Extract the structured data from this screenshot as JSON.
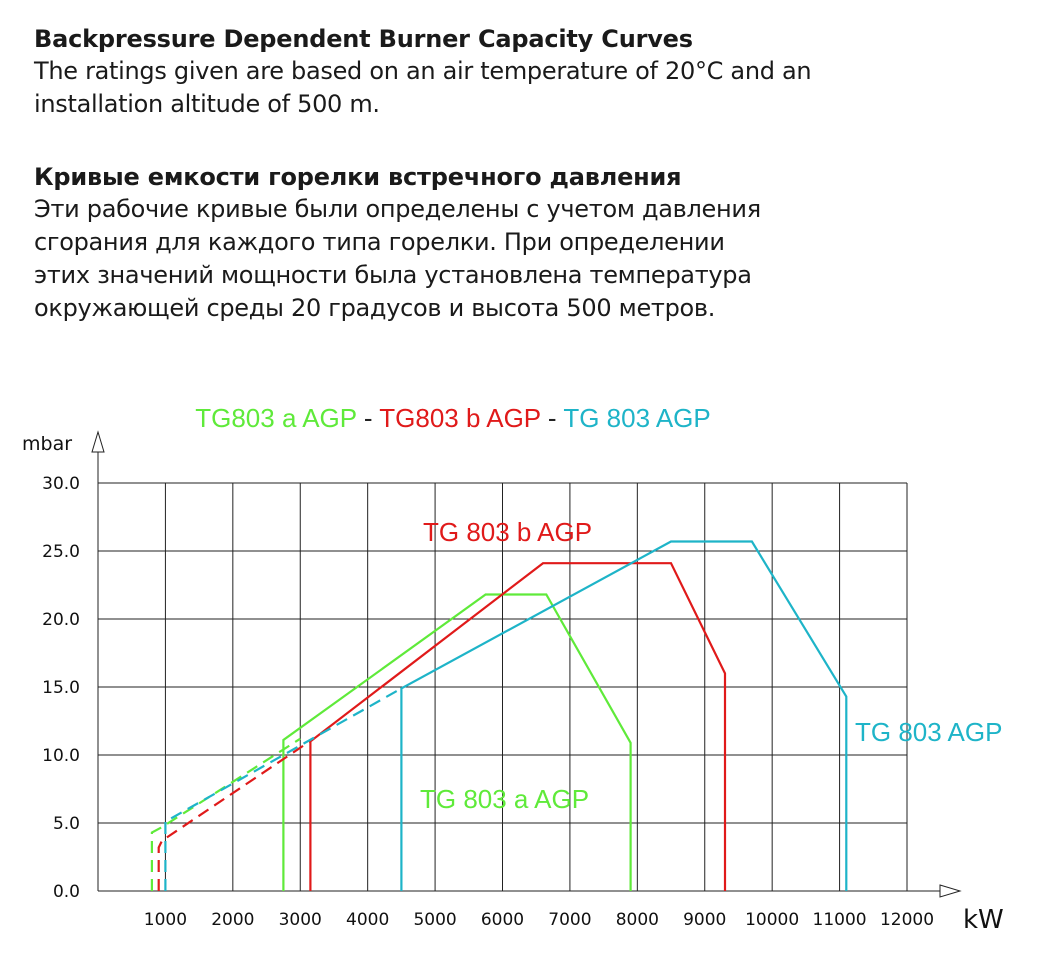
{
  "header": {
    "en_title": "Backpressure Dependent Burner Capacity Curves",
    "en_text": "The ratings given are based on an air temperature of 20°C and an installation altitude of 500 m.",
    "ru_title": "Кривые емкости горелки встречного давления",
    "ru_lines": [
      "Эти рабочие кривые были определены с учетом давления",
      "сгорания для каждого типа горелки. При определении",
      "этих значений мощности была установлена температура",
      "окружающей среды 20 градусов и высота 500 метров."
    ]
  },
  "colors": {
    "a": "#5fea3a",
    "b": "#e01a1a",
    "agp": "#1eb4c8"
  },
  "chart_data": {
    "type": "line",
    "title_parts": [
      {
        "text": "TG803 a AGP",
        "series": "a"
      },
      {
        "text": "-",
        "series": "sep"
      },
      {
        "text": "TG803 b AGP",
        "series": "b"
      },
      {
        "text": "-",
        "series": "sep"
      },
      {
        "text": "TG 803 AGP",
        "series": "agp"
      }
    ],
    "ylabel": "mbar",
    "xlabel": "kW",
    "ylim": [
      0,
      30
    ],
    "xlim": [
      0,
      12000
    ],
    "yticks": [
      "0.0",
      "5.0",
      "10.0",
      "15.0",
      "20.0",
      "25.0",
      "30.0"
    ],
    "xticks": [
      "1000",
      "2000",
      "3000",
      "4000",
      "5000",
      "6000",
      "7000",
      "8000",
      "9000",
      "10000",
      "11000",
      "12000"
    ],
    "grid": true,
    "series": [
      {
        "name": "TG 803 a AGP",
        "key": "a",
        "dashed": {
          "x": [
            800,
            800,
            950,
            3000
          ],
          "y": [
            0,
            4.3,
            4.7,
            11.2
          ]
        },
        "solid": {
          "x": [
            2750,
            2750,
            5750,
            6650,
            7900,
            7900
          ],
          "y": [
            0,
            11.1,
            21.8,
            21.8,
            10.9,
            0
          ]
        }
      },
      {
        "name": "TG 803 b AGP",
        "key": "b",
        "dashed": {
          "x": [
            900,
            900,
            950,
            3200
          ],
          "y": [
            0,
            3.2,
            3.7,
            11.2
          ]
        },
        "solid": {
          "x": [
            3150,
            3150,
            6600,
            8500,
            9300,
            9300
          ],
          "y": [
            0,
            11.0,
            24.1,
            24.1,
            16.0,
            0
          ]
        }
      },
      {
        "name": "TG 803 AGP",
        "key": "agp",
        "dashed": {
          "x": [
            1000,
            1000,
            1000,
            4500
          ],
          "y": [
            0,
            4.8,
            5.1,
            14.9
          ]
        },
        "solid": {
          "x": [
            4500,
            4500,
            8500,
            9700,
            11100,
            11100
          ],
          "y": [
            0,
            14.9,
            25.7,
            25.7,
            14.3,
            0
          ]
        }
      }
    ],
    "annotations": [
      {
        "text": "TG 803 b AGP",
        "series": "b"
      },
      {
        "text": "TG 803 AGP",
        "series": "agp"
      },
      {
        "text": "TG 803 a AGP",
        "series": "a"
      }
    ]
  }
}
